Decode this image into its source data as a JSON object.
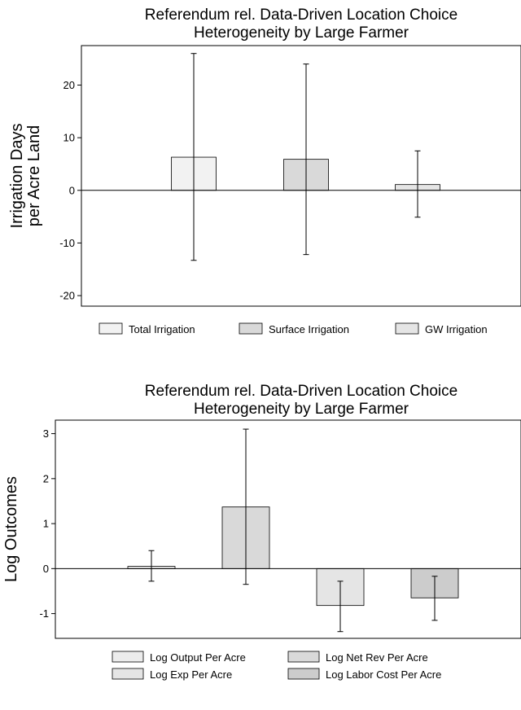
{
  "chart_data": [
    {
      "type": "bar",
      "title": [
        "Referendum rel. Data-Driven Location Choice",
        "Heterogeneity by Large Farmer"
      ],
      "xlabel": "",
      "ylabel": [
        "Irrigation Days",
        "per Acre Land"
      ],
      "ylim": [
        -22,
        27.5
      ],
      "yticks": [
        -20,
        -10,
        0,
        10,
        20
      ],
      "ytick_labels": [
        "-20",
        "-10",
        "0",
        "10",
        "20"
      ],
      "grid": false,
      "legend_position": "bottom",
      "series": [
        {
          "name": "Total Irrigation",
          "value": 6.3,
          "ci": [
            -13.3,
            26.0
          ],
          "color": "#f2f2f2"
        },
        {
          "name": "Surface Irrigation",
          "value": 5.9,
          "ci": [
            -12.2,
            24.0
          ],
          "color": "#d9d9d9"
        },
        {
          "name": "GW Irrigation",
          "value": 1.1,
          "ci": [
            -5.1,
            7.5
          ],
          "color": "#e5e5e5"
        }
      ]
    },
    {
      "type": "bar",
      "title": [
        "Referendum rel. Data-Driven Location Choice",
        "Heterogeneity by Large Farmer"
      ],
      "xlabel": "",
      "ylabel": [
        "Log Outcomes"
      ],
      "ylim": [
        -1.55,
        3.3
      ],
      "yticks": [
        -1,
        0,
        1,
        2,
        3
      ],
      "ytick_labels": [
        "-1",
        "0",
        "1",
        "2",
        "3"
      ],
      "grid": false,
      "legend_position": "bottom",
      "series": [
        {
          "name": "Log Output Per Acre",
          "value": 0.05,
          "ci": [
            -0.28,
            0.4
          ],
          "color": "#ececec"
        },
        {
          "name": "Log Net Rev Per Acre",
          "value": 1.37,
          "ci": [
            -0.35,
            3.1
          ],
          "color": "#d9d9d9"
        },
        {
          "name": "Log Exp Per Acre",
          "value": -0.82,
          "ci": [
            -1.4,
            -0.28
          ],
          "color": "#e5e5e5"
        },
        {
          "name": "Log Labor Cost Per Acre",
          "value": -0.65,
          "ci": [
            -1.15,
            -0.17
          ],
          "color": "#cccccc"
        }
      ]
    }
  ]
}
